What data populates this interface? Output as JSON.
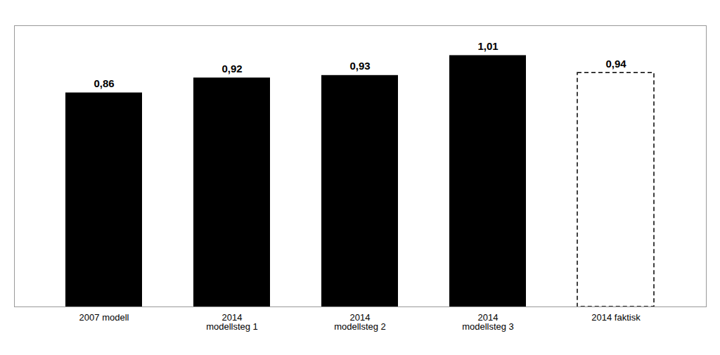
{
  "chart_data": {
    "type": "bar",
    "categories": [
      "2007 modell",
      "2014\nmodellsteg 1",
      "2014\nmodellsteg 2",
      "2014\nmodellsteg 3",
      "2014 faktisk"
    ],
    "values": [
      0.86,
      0.92,
      0.93,
      1.01,
      0.94
    ],
    "value_labels": [
      "0,86",
      "0,92",
      "0,93",
      "1,01",
      "0,94"
    ],
    "data_labels": true,
    "ylim": [
      0,
      1.13
    ],
    "tick_labels": "x",
    "grid": false
  }
}
